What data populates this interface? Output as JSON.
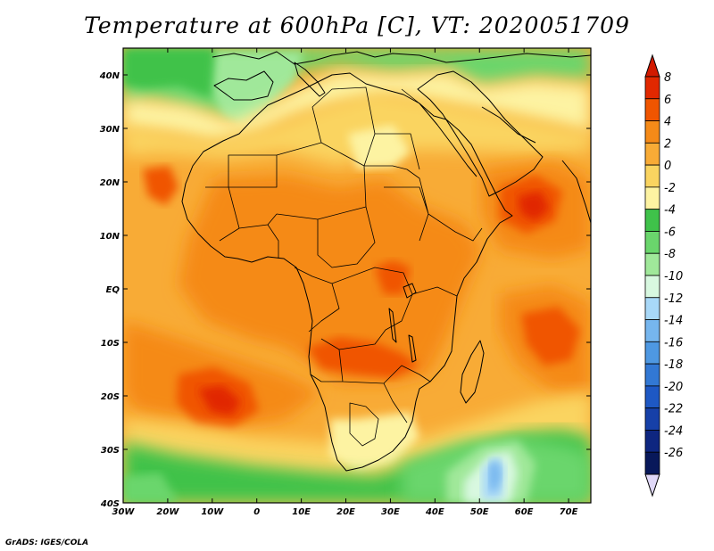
{
  "title": "Temperature at 600hPa [C], VT: 2020051709",
  "credit": "GrADS: IGES/COLA",
  "map": {
    "lon_range": [
      -30,
      75
    ],
    "lat_range": [
      -40,
      45
    ],
    "lat_ticks": [
      {
        "value": 40,
        "label": "40N"
      },
      {
        "value": 30,
        "label": "30N"
      },
      {
        "value": 20,
        "label": "20N"
      },
      {
        "value": 10,
        "label": "10N"
      },
      {
        "value": 0,
        "label": "EQ"
      },
      {
        "value": -10,
        "label": "10S"
      },
      {
        "value": -20,
        "label": "20S"
      },
      {
        "value": -30,
        "label": "30S"
      },
      {
        "value": -40,
        "label": "40S"
      }
    ],
    "lon_ticks": [
      {
        "value": -30,
        "label": "30W"
      },
      {
        "value": -20,
        "label": "20W"
      },
      {
        "value": -10,
        "label": "10W"
      },
      {
        "value": 0,
        "label": "0"
      },
      {
        "value": 10,
        "label": "10E"
      },
      {
        "value": 20,
        "label": "20E"
      },
      {
        "value": 30,
        "label": "30E"
      },
      {
        "value": 40,
        "label": "40E"
      },
      {
        "value": 50,
        "label": "50E"
      },
      {
        "value": 60,
        "label": "60E"
      },
      {
        "value": 70,
        "label": "70E"
      }
    ],
    "field_colors": {
      "c8": "#e12800",
      "c6": "#f05500",
      "c4": "#f58a18",
      "c2": "#f8ab36",
      "c0": "#fad460",
      "cm2": "#fdf3a2",
      "cm4": "#3fc24a",
      "cm6": "#6ad66c",
      "cm8": "#a0e89a",
      "cm10": "#d8f8e0",
      "cm12": "#a8d8f8",
      "cm14": "#76b6ee"
    }
  },
  "colorbar": {
    "max_color": "#d21a00",
    "min_color": "#e0d8f8",
    "levels": [
      {
        "label": "8",
        "color": "#e12800"
      },
      {
        "label": "6",
        "color": "#f05500"
      },
      {
        "label": "4",
        "color": "#f58a18"
      },
      {
        "label": "2",
        "color": "#f8ab36"
      },
      {
        "label": "0",
        "color": "#fad460"
      },
      {
        "label": "-2",
        "color": "#fdf3a2"
      },
      {
        "label": "-4",
        "color": "#3fc24a"
      },
      {
        "label": "-6",
        "color": "#6ad66c"
      },
      {
        "label": "-8",
        "color": "#a0e89a"
      },
      {
        "label": "-10",
        "color": "#d8f8e0"
      },
      {
        "label": "-12",
        "color": "#a8d8f8"
      },
      {
        "label": "-14",
        "color": "#76b6ee"
      },
      {
        "label": "-16",
        "color": "#4e98e2"
      },
      {
        "label": "-18",
        "color": "#3278d4"
      },
      {
        "label": "-20",
        "color": "#1e58c4"
      },
      {
        "label": "-22",
        "color": "#1640a8"
      },
      {
        "label": "-24",
        "color": "#0e2680"
      },
      {
        "label": "-26",
        "color": "#08185a"
      }
    ]
  }
}
